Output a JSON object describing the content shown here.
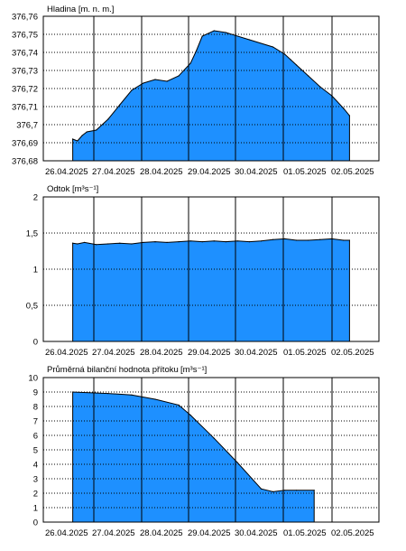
{
  "chart_data": [
    {
      "type": "area",
      "title": "Hladina [m. n. m.]",
      "ylim": [
        376.68,
        376.76
      ],
      "yticks": [
        "376,68",
        "376,69",
        "376,7",
        "376,71",
        "376,72",
        "376,73",
        "376,74",
        "376,75",
        "376,76"
      ],
      "yticks_value": [
        376.68,
        376.69,
        376.7,
        376.71,
        376.72,
        376.73,
        376.74,
        376.75,
        376.76
      ],
      "xlim": [
        25.75,
        28.6
      ],
      "xticks": [
        "26.04.2025",
        "27.04.2025",
        "28.04.2025",
        "29.04.2025",
        "30.04.2025",
        "01.05.2025",
        "02.05.2025"
      ],
      "x": [
        26.0,
        26.04,
        26.08,
        26.12,
        26.2,
        26.3,
        26.4,
        26.5,
        26.6,
        26.7,
        26.8,
        26.9,
        27.0,
        27.05,
        27.1,
        27.2,
        27.3,
        27.5,
        27.7,
        27.8,
        27.85,
        27.9,
        28.0,
        28.1,
        28.2,
        28.3,
        28.35
      ],
      "values": [
        376.692,
        376.691,
        376.694,
        376.696,
        376.697,
        376.703,
        376.711,
        376.719,
        376.723,
        376.725,
        376.724,
        376.727,
        376.734,
        376.741,
        376.749,
        376.752,
        376.751,
        376.747,
        376.743,
        376.739,
        376.736,
        376.733,
        376.727,
        376.721,
        376.716,
        376.709,
        376.705
      ],
      "grid": true
    },
    {
      "type": "area",
      "title": "Odtok [m³s⁻¹]",
      "ylim": [
        0,
        2
      ],
      "yticks": [
        "0",
        "0,5",
        "1",
        "1,5",
        "2"
      ],
      "yticks_value": [
        0,
        0.5,
        1,
        1.5,
        2
      ],
      "xlim": [
        25.75,
        28.6
      ],
      "xticks": [
        "26.04.2025",
        "27.04.2025",
        "28.04.2025",
        "29.04.2025",
        "30.04.2025",
        "01.05.2025",
        "02.05.2025"
      ],
      "x": [
        26.0,
        26.04,
        26.1,
        26.2,
        26.3,
        26.4,
        26.5,
        26.6,
        26.7,
        26.8,
        26.9,
        27.0,
        27.1,
        27.2,
        27.3,
        27.4,
        27.5,
        27.6,
        27.7,
        27.8,
        27.9,
        28.0,
        28.1,
        28.2,
        28.3,
        28.35
      ],
      "values": [
        1.36,
        1.35,
        1.37,
        1.34,
        1.35,
        1.36,
        1.35,
        1.37,
        1.38,
        1.37,
        1.38,
        1.39,
        1.38,
        1.39,
        1.38,
        1.39,
        1.38,
        1.39,
        1.41,
        1.42,
        1.4,
        1.4,
        1.41,
        1.42,
        1.4,
        1.4
      ],
      "grid": true
    },
    {
      "type": "area",
      "title": "Průměrná bilanční hodnota přítoku",
      "unit": "[m³s⁻¹]",
      "ylim": [
        0,
        10
      ],
      "yticks": [
        "0",
        "1",
        "2",
        "3",
        "4",
        "5",
        "6",
        "7",
        "8",
        "9",
        "10"
      ],
      "yticks_value": [
        0,
        1,
        2,
        3,
        4,
        5,
        6,
        7,
        8,
        9,
        10
      ],
      "xlim": [
        25.75,
        28.6
      ],
      "xticks": [
        "26.04.2025",
        "27.04.2025",
        "28.04.2025",
        "29.04.2025",
        "30.04.2025",
        "01.05.2025",
        "02.05.2025"
      ],
      "x": [
        26.0,
        26.3,
        26.5,
        26.7,
        26.9,
        27.0,
        27.2,
        27.4,
        27.6,
        27.7,
        27.8,
        27.9,
        28.05
      ],
      "values": [
        9.0,
        8.9,
        8.8,
        8.5,
        8.1,
        7.4,
        5.8,
        4.1,
        2.3,
        2.1,
        2.2,
        2.2,
        2.2
      ],
      "grid": true
    }
  ]
}
